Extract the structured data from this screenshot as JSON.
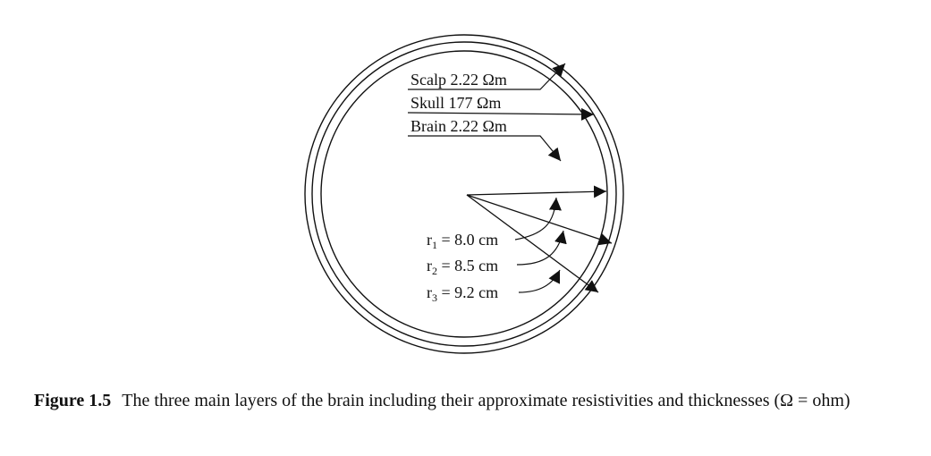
{
  "layers": [
    {
      "name": "Scalp",
      "value": "2.22 Ωm"
    },
    {
      "name": "Skull",
      "value": "177 Ωm"
    },
    {
      "name": "Brain",
      "value": "2.22 Ωm"
    }
  ],
  "radii": [
    {
      "symbol": "r",
      "sub": "1",
      "value": " = 8.0 cm"
    },
    {
      "symbol": "r",
      "sub": "2",
      "value": " = 8.5 cm"
    },
    {
      "symbol": "r",
      "sub": "3",
      "value": " = 9.2 cm"
    }
  ],
  "caption": {
    "number": "Figure 1.5",
    "text": "The three main layers of the brain including their approximate resistivities and thicknesses (Ω = ohm)"
  }
}
